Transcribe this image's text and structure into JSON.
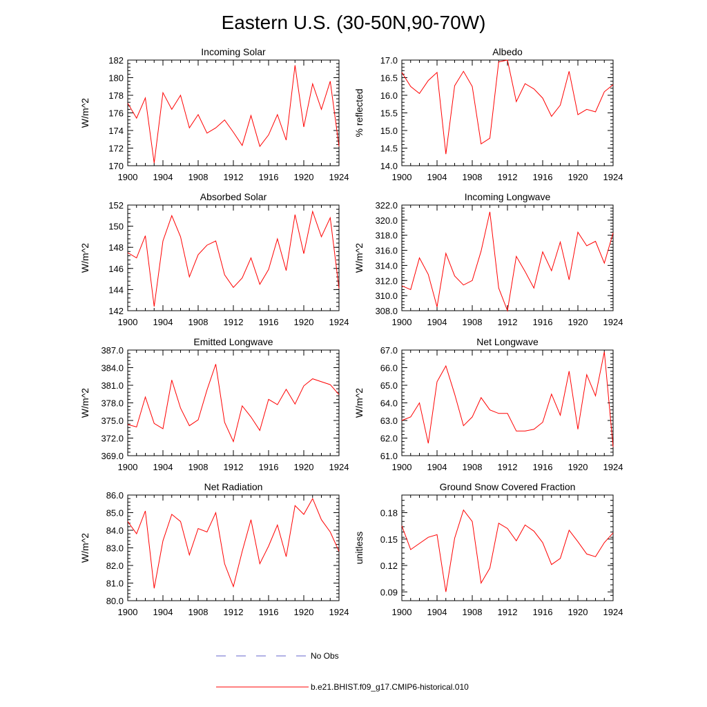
{
  "figure": {
    "title": "Eastern U.S. (30-50N,90-70W)"
  },
  "legend": {
    "items": [
      {
        "label": "No Obs",
        "color": "#6666cc",
        "style": "dashed"
      },
      {
        "label": "b.e21.BHIST.f09_g17.CMIP6-historical.010",
        "color": "#ff0000",
        "style": "solid"
      }
    ]
  },
  "chart_data": [
    {
      "type": "line",
      "title": "Incoming Solar",
      "ylabel": "W/m^2",
      "xlim": [
        1900,
        1924
      ],
      "ylim": [
        170,
        182
      ],
      "xticks": [
        "1900",
        "1904",
        "1908",
        "1912",
        "1916",
        "1920",
        "1924"
      ],
      "yticks": [
        "170",
        "172",
        "174",
        "176",
        "178",
        "180",
        "182"
      ],
      "x": [
        1900,
        1901,
        1902,
        1903,
        1904,
        1905,
        1906,
        1907,
        1908,
        1909,
        1910,
        1911,
        1912,
        1913,
        1914,
        1915,
        1916,
        1917,
        1918,
        1919,
        1920,
        1921,
        1922,
        1923,
        1924
      ],
      "series": [
        {
          "name": "b.e21.BHIST.f09_g17.CMIP6-historical.010",
          "values": [
            177.1,
            175.4,
            177.7,
            170.3,
            178.3,
            176.4,
            178.0,
            174.3,
            175.8,
            173.7,
            174.3,
            175.2,
            173.8,
            172.3,
            175.7,
            172.2,
            173.5,
            175.8,
            172.9,
            181.4,
            174.4,
            179.3,
            176.4,
            179.6,
            172.2
          ]
        }
      ]
    },
    {
      "type": "line",
      "title": "Albedo",
      "ylabel": "% reflected",
      "xlim": [
        1900,
        1924
      ],
      "ylim": [
        14.0,
        17.0
      ],
      "xticks": [
        "1900",
        "1904",
        "1908",
        "1912",
        "1916",
        "1920",
        "1924"
      ],
      "yticks": [
        "14.0",
        "14.5",
        "15.0",
        "15.5",
        "16.0",
        "16.5",
        "17.0"
      ],
      "x": [
        1900,
        1901,
        1902,
        1903,
        1904,
        1905,
        1906,
        1907,
        1908,
        1909,
        1910,
        1911,
        1912,
        1913,
        1914,
        1915,
        1916,
        1917,
        1918,
        1919,
        1920,
        1921,
        1922,
        1923,
        1924
      ],
      "series": [
        {
          "name": "b.e21.BHIST.f09_g17.CMIP6-historical.010",
          "values": [
            16.65,
            16.25,
            16.05,
            16.42,
            16.65,
            14.33,
            16.27,
            16.68,
            16.25,
            14.62,
            14.78,
            16.95,
            17.0,
            15.82,
            16.33,
            16.18,
            15.92,
            15.4,
            15.72,
            16.68,
            15.45,
            15.6,
            15.53,
            16.1,
            16.3
          ]
        }
      ]
    },
    {
      "type": "line",
      "title": "Absorbed Solar",
      "ylabel": "W/m^2",
      "xlim": [
        1900,
        1924
      ],
      "ylim": [
        142,
        152
      ],
      "xticks": [
        "1900",
        "1904",
        "1908",
        "1912",
        "1916",
        "1920",
        "1924"
      ],
      "yticks": [
        "142",
        "144",
        "146",
        "148",
        "150",
        "152"
      ],
      "x": [
        1900,
        1901,
        1902,
        1903,
        1904,
        1905,
        1906,
        1907,
        1908,
        1909,
        1910,
        1911,
        1912,
        1913,
        1914,
        1915,
        1916,
        1917,
        1918,
        1919,
        1920,
        1921,
        1922,
        1923,
        1924
      ],
      "series": [
        {
          "name": "b.e21.BHIST.f09_g17.CMIP6-historical.010",
          "values": [
            147.5,
            147.0,
            149.1,
            142.4,
            148.6,
            151.0,
            149.0,
            145.2,
            147.3,
            148.2,
            148.6,
            145.4,
            144.2,
            145.1,
            147.0,
            144.5,
            145.9,
            148.8,
            145.8,
            151.1,
            147.4,
            151.4,
            149.0,
            150.8,
            144.1
          ]
        }
      ]
    },
    {
      "type": "line",
      "title": "Incoming Longwave",
      "ylabel": "W/m^2",
      "xlim": [
        1900,
        1924
      ],
      "ylim": [
        308.0,
        322.0
      ],
      "xticks": [
        "1900",
        "1904",
        "1908",
        "1912",
        "1916",
        "1920",
        "1924"
      ],
      "yticks": [
        "308.0",
        "310.0",
        "312.0",
        "314.0",
        "316.0",
        "318.0",
        "320.0",
        "322.0"
      ],
      "x": [
        1900,
        1901,
        1902,
        1903,
        1904,
        1905,
        1906,
        1907,
        1908,
        1909,
        1910,
        1911,
        1912,
        1913,
        1914,
        1915,
        1916,
        1917,
        1918,
        1919,
        1920,
        1921,
        1922,
        1923,
        1924
      ],
      "series": [
        {
          "name": "b.e21.BHIST.f09_g17.CMIP6-historical.010",
          "values": [
            311.3,
            310.8,
            315.0,
            312.8,
            308.5,
            315.6,
            312.6,
            311.4,
            312.0,
            315.9,
            321.1,
            311.0,
            308.0,
            315.2,
            313.2,
            311.0,
            315.8,
            313.3,
            317.1,
            312.1,
            318.4,
            316.6,
            317.2,
            314.3,
            318.3
          ]
        }
      ]
    },
    {
      "type": "line",
      "title": "Emitted Longwave",
      "ylabel": "W/m^2",
      "xlim": [
        1900,
        1924
      ],
      "ylim": [
        369.0,
        387.0
      ],
      "xticks": [
        "1900",
        "1904",
        "1908",
        "1912",
        "1916",
        "1920",
        "1924"
      ],
      "yticks": [
        "369.0",
        "372.0",
        "375.0",
        "378.0",
        "381.0",
        "384.0",
        "387.0"
      ],
      "x": [
        1900,
        1901,
        1902,
        1903,
        1904,
        1905,
        1906,
        1907,
        1908,
        1909,
        1910,
        1911,
        1912,
        1913,
        1914,
        1915,
        1916,
        1917,
        1918,
        1919,
        1920,
        1921,
        1922,
        1923,
        1924
      ],
      "series": [
        {
          "name": "b.e21.BHIST.f09_g17.CMIP6-historical.010",
          "values": [
            374.3,
            373.9,
            379.0,
            374.5,
            373.6,
            381.9,
            377.1,
            374.1,
            375.1,
            380.2,
            384.6,
            374.7,
            371.4,
            377.5,
            375.6,
            373.3,
            378.6,
            377.7,
            380.3,
            377.8,
            380.9,
            382.1,
            381.6,
            381.1,
            379.4
          ]
        }
      ]
    },
    {
      "type": "line",
      "title": "Net Longwave",
      "ylabel": "W/m^2",
      "xlim": [
        1900,
        1924
      ],
      "ylim": [
        61.0,
        67.0
      ],
      "xticks": [
        "1900",
        "1904",
        "1908",
        "1912",
        "1916",
        "1920",
        "1924"
      ],
      "yticks": [
        "61.0",
        "62.0",
        "63.0",
        "64.0",
        "65.0",
        "66.0",
        "67.0"
      ],
      "x": [
        1900,
        1901,
        1902,
        1903,
        1904,
        1905,
        1906,
        1907,
        1908,
        1909,
        1910,
        1911,
        1912,
        1913,
        1914,
        1915,
        1916,
        1917,
        1918,
        1919,
        1920,
        1921,
        1922,
        1923,
        1924
      ],
      "series": [
        {
          "name": "b.e21.BHIST.f09_g17.CMIP6-historical.010",
          "values": [
            63.0,
            63.2,
            64.0,
            61.7,
            65.2,
            66.1,
            64.5,
            62.7,
            63.2,
            64.3,
            63.6,
            63.4,
            63.4,
            62.4,
            62.4,
            62.5,
            62.9,
            64.5,
            63.3,
            65.8,
            62.5,
            65.6,
            64.4,
            66.9,
            61.5
          ]
        }
      ]
    },
    {
      "type": "line",
      "title": "Net Radiation",
      "ylabel": "W/m^2",
      "xlim": [
        1900,
        1924
      ],
      "ylim": [
        80.0,
        86.0
      ],
      "xticks": [
        "1900",
        "1904",
        "1908",
        "1912",
        "1916",
        "1920",
        "1924"
      ],
      "yticks": [
        "80.0",
        "81.0",
        "82.0",
        "83.0",
        "84.0",
        "85.0",
        "86.0"
      ],
      "x": [
        1900,
        1901,
        1902,
        1903,
        1904,
        1905,
        1906,
        1907,
        1908,
        1909,
        1910,
        1911,
        1912,
        1913,
        1914,
        1915,
        1916,
        1917,
        1918,
        1919,
        1920,
        1921,
        1922,
        1923,
        1924
      ],
      "series": [
        {
          "name": "b.e21.BHIST.f09_g17.CMIP6-historical.010",
          "values": [
            84.5,
            83.8,
            85.1,
            80.7,
            83.4,
            84.9,
            84.5,
            82.6,
            84.1,
            83.9,
            85.0,
            82.1,
            80.8,
            82.8,
            84.6,
            82.1,
            83.1,
            84.3,
            82.5,
            85.4,
            84.9,
            85.8,
            84.6,
            83.9,
            82.8
          ]
        }
      ]
    },
    {
      "type": "line",
      "title": "Ground Snow Covered Fraction",
      "ylabel": "unitless",
      "xlim": [
        1900,
        1924
      ],
      "ylim": [
        0.08,
        0.2
      ],
      "xticks": [
        "1900",
        "1904",
        "1908",
        "1912",
        "1916",
        "1920",
        "1924"
      ],
      "yticks": [
        "0.09",
        "0.12",
        "0.15",
        "0.18"
      ],
      "ytick_values": [
        0.09,
        0.12,
        0.15,
        0.18
      ],
      "x": [
        1900,
        1901,
        1902,
        1903,
        1904,
        1905,
        1906,
        1907,
        1908,
        1909,
        1910,
        1911,
        1912,
        1913,
        1914,
        1915,
        1916,
        1917,
        1918,
        1919,
        1920,
        1921,
        1922,
        1923,
        1924
      ],
      "series": [
        {
          "name": "b.e21.BHIST.f09_g17.CMIP6-historical.010",
          "values": [
            0.165,
            0.138,
            0.145,
            0.152,
            0.155,
            0.09,
            0.151,
            0.183,
            0.17,
            0.1,
            0.117,
            0.168,
            0.162,
            0.148,
            0.166,
            0.159,
            0.146,
            0.121,
            0.128,
            0.16,
            0.147,
            0.133,
            0.13,
            0.146,
            0.157
          ]
        }
      ]
    }
  ]
}
